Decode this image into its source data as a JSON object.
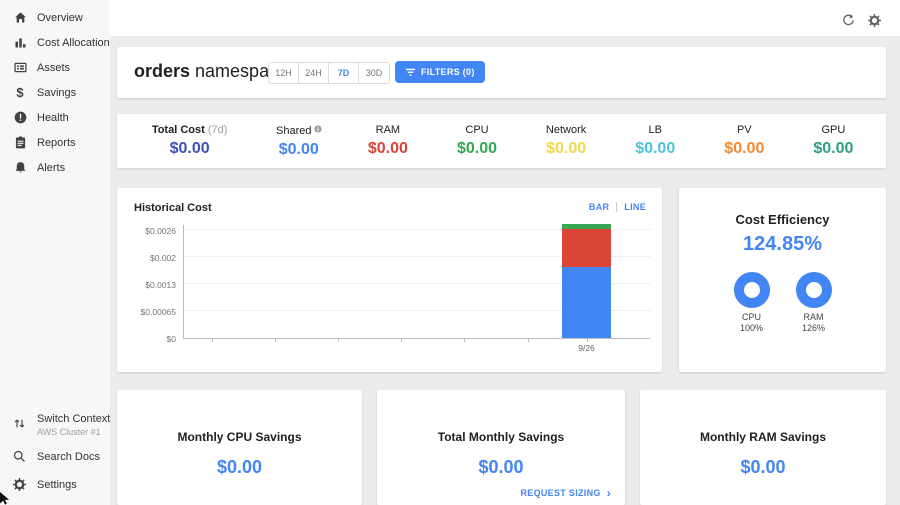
{
  "icons": {
    "dollar": "$",
    "chevron_right": "›"
  },
  "sidebar": {
    "items": [
      {
        "label": "Overview",
        "icon": "home"
      },
      {
        "label": "Cost Allocation",
        "icon": "bar-chart"
      },
      {
        "label": "Assets",
        "icon": "grid"
      },
      {
        "label": "Savings",
        "icon": "dollar"
      },
      {
        "label": "Health",
        "icon": "alert-circle"
      },
      {
        "label": "Reports",
        "icon": "clipboard"
      },
      {
        "label": "Alerts",
        "icon": "bell"
      }
    ],
    "footer": {
      "switch_context": {
        "label": "Switch Context",
        "sublabel": "AWS Cluster #1",
        "icon": "swap-vertical"
      },
      "search_docs": {
        "label": "Search Docs",
        "icon": "search"
      },
      "settings": {
        "label": "Settings",
        "icon": "gear"
      }
    }
  },
  "header": {
    "title_primary": "orders",
    "title_secondary": " namespace",
    "time_ranges": [
      "12H",
      "24H",
      "7D",
      "30D"
    ],
    "selected_range": "7D",
    "filters_button": "FILTERS (0)"
  },
  "stats": {
    "items": [
      {
        "label": "Total Cost",
        "label_suffix": "(7d)",
        "value": "$0.00",
        "color": "#3f51b5"
      },
      {
        "label": "Shared",
        "value": "$0.00",
        "color": "#4285f4"
      },
      {
        "label": "RAM",
        "value": "$0.00",
        "color": "#db4437"
      },
      {
        "label": "CPU",
        "value": "$0.00",
        "color": "#34a853"
      },
      {
        "label": "Network",
        "value": "$0.00",
        "color": "#f2d750"
      },
      {
        "label": "LB",
        "value": "$0.00",
        "color": "#4ec3d9"
      },
      {
        "label": "PV",
        "value": "$0.00",
        "color": "#f6882f"
      },
      {
        "label": "GPU",
        "value": "$0.00",
        "color": "#2e9e82"
      }
    ]
  },
  "historical_cost": {
    "title": "Historical Cost",
    "view_bar": "BAR",
    "view_line": "LINE",
    "active_view": "BAR"
  },
  "chart_data": {
    "type": "bar",
    "title": "Historical Cost",
    "x": [
      "9/26"
    ],
    "series": [
      {
        "name": "segment-blue",
        "color": "#4285f4",
        "values": [
          0.0017
        ]
      },
      {
        "name": "segment-red",
        "color": "#db4437",
        "values": [
          0.00092
        ]
      },
      {
        "name": "segment-green",
        "color": "#34a853",
        "values": [
          0.00013
        ]
      }
    ],
    "ylim": [
      0,
      0.0026
    ],
    "yticks": [
      "$0",
      "$0.00065",
      "$0.0013",
      "$0.002",
      "$0.0026"
    ],
    "grid": true,
    "legend": false
  },
  "efficiency": {
    "title": "Cost Efficiency",
    "value": "124.85%",
    "accent": "#4285f4",
    "donuts": [
      {
        "label": "CPU",
        "value": "100%"
      },
      {
        "label": "RAM",
        "value": "126%"
      }
    ]
  },
  "savings_cards": [
    {
      "title": "Monthly CPU Savings",
      "value": "$0.00"
    },
    {
      "title": "Total Monthly Savings",
      "value": "$0.00",
      "link": "REQUEST SIZING"
    },
    {
      "title": "Monthly RAM Savings",
      "value": "$0.00"
    }
  ]
}
